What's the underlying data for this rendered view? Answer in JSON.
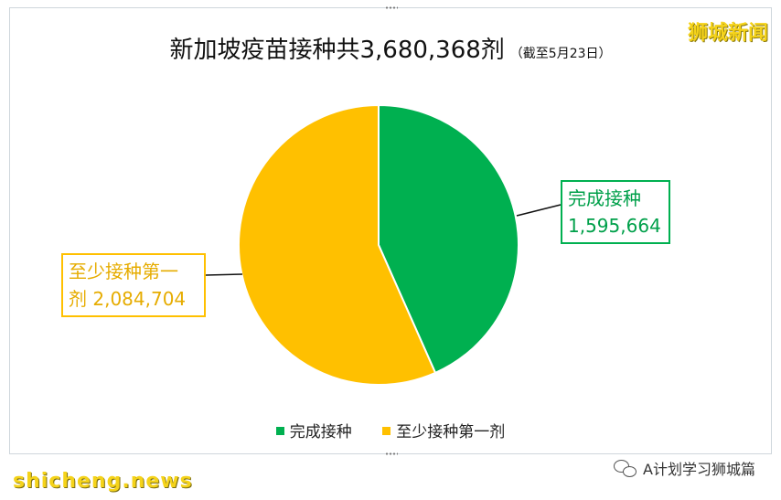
{
  "chart_data": {
    "type": "pie",
    "title": "新加坡疫苗接种共3,680,368剂",
    "subtitle": "（截至5月23日）",
    "slices": [
      {
        "name": "完成接种",
        "value": 1595664,
        "value_label": "1,595,664",
        "color": "#00b050"
      },
      {
        "name": "至少接种第一剂",
        "value": 2084704,
        "value_label": "2,084,704",
        "color": "#ffc000"
      }
    ],
    "start_angle": "12 o'clock",
    "direction": "clockwise",
    "legend_position": "bottom"
  },
  "labels": {
    "green_title": "完成接种",
    "green_value": "1,595,664",
    "yellow_title": "至少接种第一",
    "yellow_value": "剂 2,084,704"
  },
  "watermarks": {
    "brand": "狮城新闻",
    "footer_left": "shicheng.news",
    "footer_right": "A计划学习狮城篇",
    "footer_right_icon": "wechat-icon"
  }
}
